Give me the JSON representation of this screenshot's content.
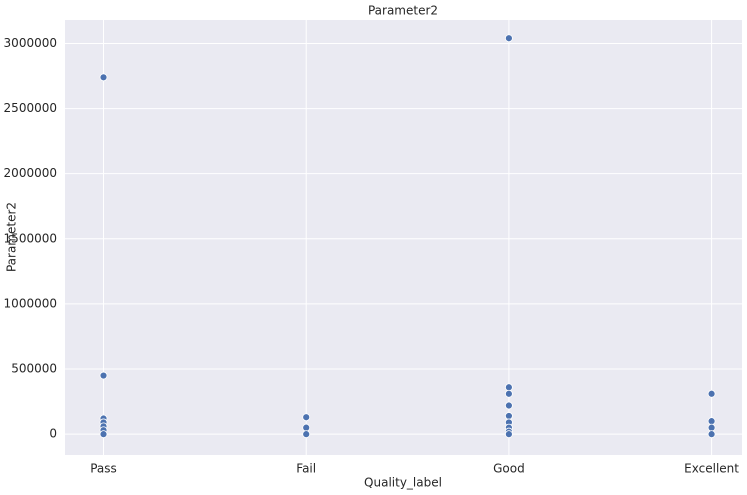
{
  "chart_data": {
    "type": "scatter",
    "title": "Parameter2",
    "xlabel": "Quality_label",
    "ylabel": "Parameter2",
    "categories": [
      "Pass",
      "Fail",
      "Good",
      "Excellent"
    ],
    "x": [
      "Pass",
      "Pass",
      "Pass",
      "Pass",
      "Pass",
      "Pass",
      "Pass",
      "Fail",
      "Fail",
      "Fail",
      "Good",
      "Good",
      "Good",
      "Good",
      "Good",
      "Good",
      "Good",
      "Good",
      "Good",
      "Excellent",
      "Excellent",
      "Excellent",
      "Excellent"
    ],
    "values": [
      2740000,
      450000,
      120000,
      90000,
      60000,
      30000,
      0,
      130000,
      50000,
      0,
      3040000,
      360000,
      310000,
      220000,
      140000,
      90000,
      50000,
      20000,
      0,
      310000,
      100000,
      50000,
      0
    ],
    "color": "#4c72b0",
    "ylim": [
      -160000,
      3180000
    ],
    "yticks": [
      0,
      500000,
      1000000,
      1500000,
      2000000,
      2500000,
      3000000
    ],
    "grid": true
  }
}
